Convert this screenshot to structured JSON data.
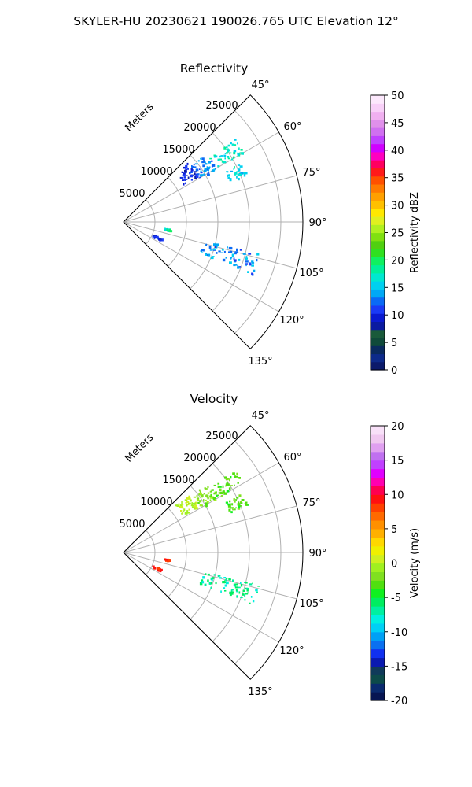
{
  "suptitle": "SKYLER-HU  20230621  190026.765 UTC Elevation 12°",
  "chart_data": [
    {
      "type": "polar-sector",
      "title": "Reflectivity",
      "range_label": "Meters",
      "range_ticks": [
        5000,
        10000,
        15000,
        20000,
        25000
      ],
      "azimuth_ticks": [
        "45°",
        "60°",
        "75°",
        "90°",
        "105°",
        "120°",
        "135°"
      ],
      "azimuth_range": [
        45,
        135
      ],
      "colorbar": {
        "label": "Reflectivity dBZ",
        "min": 0,
        "max": 50,
        "ticks": [
          0,
          5,
          10,
          15,
          20,
          25,
          30,
          35,
          40,
          45,
          50
        ]
      },
      "echo_clusters": [
        {
          "azimuth": [
            47,
            58
          ],
          "range_m": [
            11000,
            14000
          ],
          "value": [
            8,
            12
          ]
        },
        {
          "azimuth": [
            50,
            60
          ],
          "range_m": [
            14000,
            17000
          ],
          "value": [
            11,
            15
          ]
        },
        {
          "azimuth": [
            53,
            60
          ],
          "range_m": [
            17000,
            22000
          ],
          "value": [
            15,
            19
          ]
        },
        {
          "azimuth": [
            63,
            69
          ],
          "range_m": [
            18000,
            21000
          ],
          "value": [
            14,
            18
          ]
        },
        {
          "azimuth": [
            98,
            100
          ],
          "range_m": [
            6500,
            7500
          ],
          "value": [
            16,
            20
          ]
        },
        {
          "azimuth": [
            113,
            116
          ],
          "range_m": [
            5000,
            6500
          ],
          "value": [
            8,
            12
          ]
        },
        {
          "azimuth": [
            103,
            112
          ],
          "range_m": [
            13000,
            22000
          ],
          "value": [
            11,
            16
          ]
        }
      ]
    },
    {
      "type": "polar-sector",
      "title": "Velocity",
      "range_label": "Meters",
      "range_ticks": [
        5000,
        10000,
        15000,
        20000,
        25000
      ],
      "azimuth_ticks": [
        "45°",
        "60°",
        "75°",
        "90°",
        "105°",
        "120°",
        "135°"
      ],
      "azimuth_range": [
        45,
        135
      ],
      "colorbar": {
        "label": "Velocity (m/s)",
        "min": -20,
        "max": 20,
        "ticks": [
          -20,
          -15,
          -10,
          -5,
          0,
          5,
          10,
          15,
          20
        ]
      },
      "echo_clusters": [
        {
          "azimuth": [
            47,
            58
          ],
          "range_m": [
            11000,
            14000
          ],
          "value": [
            -1,
            1
          ]
        },
        {
          "azimuth": [
            50,
            60
          ],
          "range_m": [
            14000,
            17000
          ],
          "value": [
            -3,
            -1
          ]
        },
        {
          "azimuth": [
            53,
            60
          ],
          "range_m": [
            17000,
            22000
          ],
          "value": [
            -4,
            -2
          ]
        },
        {
          "azimuth": [
            63,
            69
          ],
          "range_m": [
            18000,
            21000
          ],
          "value": [
            -4,
            -2
          ]
        },
        {
          "azimuth": [
            98,
            100
          ],
          "range_m": [
            6500,
            7500
          ],
          "value": [
            8,
            10
          ]
        },
        {
          "azimuth": [
            113,
            116
          ],
          "range_m": [
            5000,
            6500
          ],
          "value": [
            8,
            10
          ]
        },
        {
          "azimuth": [
            103,
            112
          ],
          "range_m": [
            13000,
            22000
          ],
          "value": [
            -8,
            -5
          ]
        }
      ]
    }
  ]
}
